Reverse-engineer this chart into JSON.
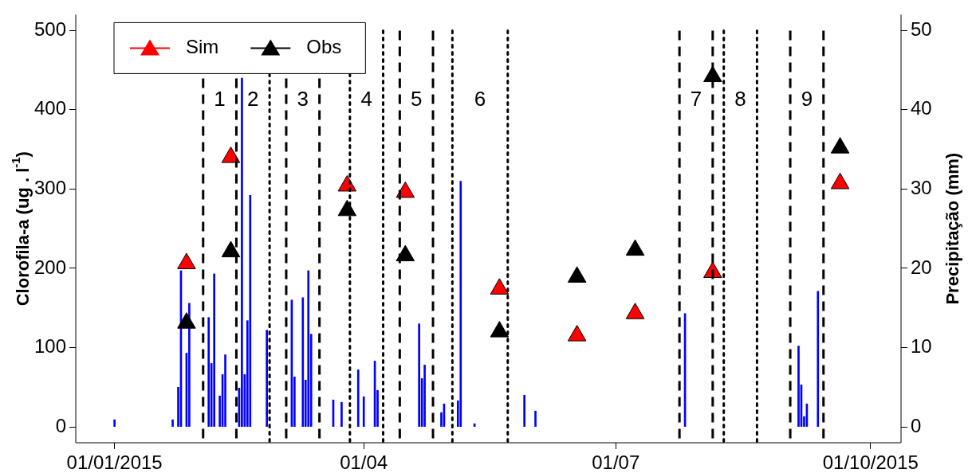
{
  "chart_data": {
    "type": "scatter",
    "ylabel": "Clorofila-a (ug . l$^{-1}$)",
    "y2label": "Precipitação (mm)",
    "xlim": [
      "2014-12-18",
      "2015-10-12"
    ],
    "xticks": [
      {
        "value": "2015-01-01",
        "label": "01/01/2015"
      },
      {
        "value": "2015-04-01",
        "label": "01/04"
      },
      {
        "value": "2015-07-01",
        "label": "01/07"
      },
      {
        "value": "2015-10-01",
        "label": "01/10/2015"
      }
    ],
    "ylim": [
      -20,
      520
    ],
    "yticks": [
      0,
      100,
      200,
      300,
      400,
      500
    ],
    "y2lim": [
      -2,
      52
    ],
    "y2ticks": [
      0,
      10,
      20,
      30,
      40,
      50
    ],
    "grid": false,
    "legend": "top left",
    "marker": "triangle",
    "series": [
      {
        "type": "bar",
        "axis": "y2",
        "color": "#0000ff",
        "x": [
          "2015-01-01",
          "2015-01-22",
          "2015-01-24",
          "2015-01-25",
          "2015-01-27",
          "2015-01-28",
          "2015-02-04",
          "2015-02-05",
          "2015-02-06",
          "2015-02-08",
          "2015-02-09",
          "2015-02-10",
          "2015-02-15",
          "2015-02-16",
          "2015-02-17",
          "2015-02-18",
          "2015-02-19",
          "2015-02-25",
          "2015-03-06",
          "2015-03-07",
          "2015-03-10",
          "2015-03-11",
          "2015-03-12",
          "2015-03-13",
          "2015-03-21",
          "2015-03-24",
          "2015-03-30",
          "2015-04-01",
          "2015-04-05",
          "2015-04-06",
          "2015-04-21",
          "2015-04-22",
          "2015-04-23",
          "2015-04-29",
          "2015-04-30",
          "2015-05-05",
          "2015-05-06",
          "2015-05-11",
          "2015-05-29",
          "2015-06-02",
          "2015-07-26",
          "2015-09-05",
          "2015-09-06",
          "2015-09-07",
          "2015-09-08",
          "2015-09-12"
        ],
        "values": [
          0.9,
          0.9,
          5.0,
          19.7,
          9.3,
          15.6,
          13.8,
          8.0,
          19.3,
          3.9,
          6.6,
          9.1,
          4.9,
          44.0,
          6.6,
          13.4,
          29.2,
          12.2,
          16.0,
          6.3,
          16.3,
          5.9,
          19.7,
          11.7,
          3.4,
          3.1,
          7.2,
          3.8,
          8.3,
          4.6,
          13.0,
          6.1,
          7.8,
          1.8,
          2.9,
          3.3,
          31.0,
          0.4,
          4.0,
          2.0,
          14.3,
          10.2,
          5.3,
          1.3,
          2.9,
          17.1
        ]
      },
      {
        "name": "Sim",
        "color": "#ff0000",
        "x": [
          "2015-01-27",
          "2015-02-12",
          "2015-03-26",
          "2015-04-16",
          "2015-05-20",
          "2015-06-17",
          "2015-07-08",
          "2015-08-05",
          "2015-09-20"
        ],
        "values": [
          206,
          340,
          304,
          296,
          174,
          115,
          143,
          195,
          307
        ]
      },
      {
        "name": "Obs",
        "color": "#000000",
        "x": [
          "2015-01-27",
          "2015-02-12",
          "2015-03-26",
          "2015-04-16",
          "2015-05-20",
          "2015-06-17",
          "2015-07-08",
          "2015-08-05",
          "2015-09-20"
        ],
        "values": [
          131,
          221,
          273,
          216,
          120,
          189,
          223,
          442,
          352
        ]
      }
    ],
    "ref_lines": [
      {
        "axis": "x",
        "value": "2015-02-02",
        "line_style": "dashed",
        "color": "#000000",
        "label": "1"
      },
      {
        "axis": "x",
        "value": "2015-02-14",
        "line_style": "dashed",
        "color": "#000000",
        "label": "2"
      },
      {
        "axis": "x",
        "value": "2015-02-26",
        "line_style": "dotted",
        "color": "#000000"
      },
      {
        "axis": "x",
        "value": "2015-03-04",
        "line_style": "dashed",
        "color": "#000000",
        "label": "3"
      },
      {
        "axis": "x",
        "value": "2015-03-16",
        "line_style": "dashed",
        "color": "#000000"
      },
      {
        "axis": "x",
        "value": "2015-03-27",
        "line_style": "dotted",
        "color": "#000000",
        "label": "4"
      },
      {
        "axis": "x",
        "value": "2015-04-08",
        "line_style": "dotted",
        "color": "#000000"
      },
      {
        "axis": "x",
        "value": "2015-04-14",
        "line_style": "dashed",
        "color": "#000000",
        "label": "5"
      },
      {
        "axis": "x",
        "value": "2015-04-26",
        "line_style": "dashed",
        "color": "#000000"
      },
      {
        "axis": "x",
        "value": "2015-05-03",
        "line_style": "dotted",
        "color": "#000000",
        "label": "6"
      },
      {
        "axis": "x",
        "value": "2015-05-23",
        "line_style": "dotted",
        "color": "#000000"
      },
      {
        "axis": "x",
        "value": "2015-07-24",
        "line_style": "dashed",
        "color": "#000000",
        "label": "7"
      },
      {
        "axis": "x",
        "value": "2015-08-05",
        "line_style": "dashed",
        "color": "#000000"
      },
      {
        "axis": "x",
        "value": "2015-08-09",
        "line_style": "dotted",
        "color": "#000000",
        "label": "8"
      },
      {
        "axis": "x",
        "value": "2015-08-21",
        "line_style": "dotted",
        "color": "#000000"
      },
      {
        "axis": "x",
        "value": "2015-09-02",
        "line_style": "dashed",
        "color": "#000000",
        "label": "9"
      },
      {
        "axis": "x",
        "value": "2015-09-14",
        "line_style": "dashed",
        "color": "#000000"
      }
    ]
  }
}
